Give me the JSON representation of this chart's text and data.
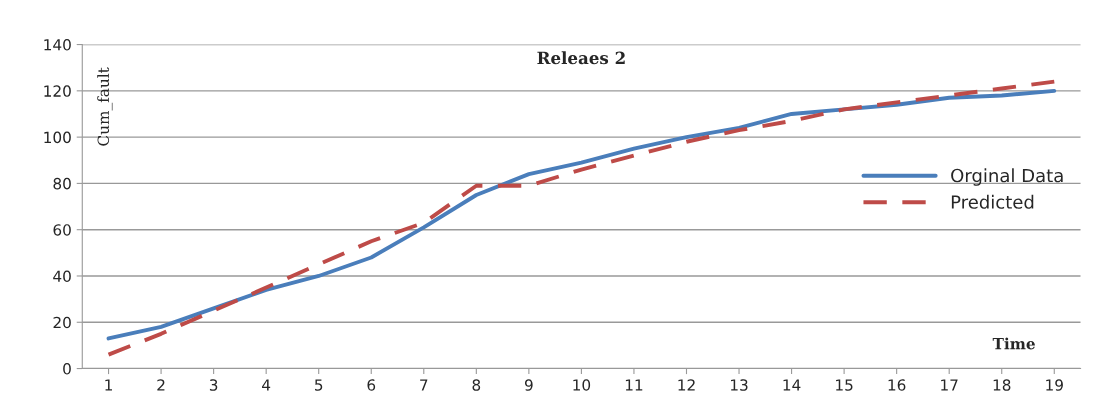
{
  "chart_data": {
    "type": "line",
    "title": "Releaes 2",
    "xlabel": "Time",
    "ylabel": "Cum_fault",
    "categories": [
      "1",
      "2",
      "3",
      "4",
      "5",
      "6",
      "7",
      "8",
      "9",
      "10",
      "11",
      "12",
      "13",
      "14",
      "15",
      "16",
      "17",
      "18",
      "19"
    ],
    "series": [
      {
        "name": "Orginal Data",
        "color": "#4a7ebb",
        "line_style": "solid",
        "values": [
          13,
          18,
          26,
          34,
          40,
          48,
          61,
          75,
          84,
          89,
          95,
          100,
          104,
          110,
          112,
          114,
          117,
          118,
          120
        ]
      },
      {
        "name": "Predicted",
        "color": "#be4b48",
        "line_style": "dashed",
        "values": [
          6,
          15,
          25,
          35,
          45,
          55,
          63,
          79,
          79,
          86,
          92,
          98,
          103,
          107,
          112,
          115,
          118,
          121,
          124
        ]
      }
    ],
    "ylim": [
      0,
      140
    ],
    "yticks": [
      0,
      20,
      40,
      60,
      80,
      100,
      120,
      140
    ],
    "grid": "y",
    "legend": "right",
    "marker": "none"
  }
}
